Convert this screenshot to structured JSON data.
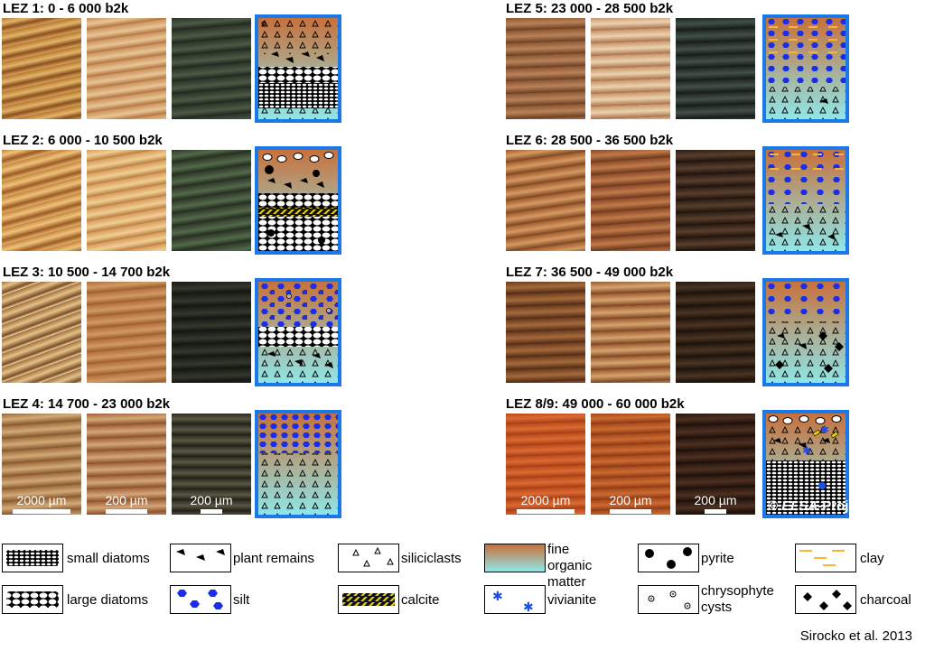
{
  "zones": [
    {
      "title": "LEZ 1:  0 - 6 000 b2k"
    },
    {
      "title": "LEZ 2:  6 000 - 10 500 b2k"
    },
    {
      "title": "LEZ 3:  10 500 - 14 700 b2k"
    },
    {
      "title": "LEZ 4:  14 700 - 23 000 b2k"
    },
    {
      "title": "LEZ 5:  23 000 - 28 500 b2k"
    },
    {
      "title": "LEZ 6:  28 500 - 36 500 b2k"
    },
    {
      "title": "LEZ 7:  36 500 - 49 000 b2k"
    },
    {
      "title": "LEZ 8/9:  49 000 - 60 000 b2k"
    }
  ],
  "scale_bars": {
    "large": "2000 µm",
    "small": "200 µm"
  },
  "watermark": {
    "symbol": "©",
    "project": "ELSA",
    "suffix": "-Project"
  },
  "legend": [
    {
      "label": "small diatoms",
      "icon": "small-diatoms"
    },
    {
      "label": "plant remains",
      "icon": "plant-remains"
    },
    {
      "label": "siliciclasts",
      "icon": "siliciclasts"
    },
    {
      "label": "fine organic matter",
      "icon": "fine-organic-matter"
    },
    {
      "label": "pyrite",
      "icon": "pyrite"
    },
    {
      "label": "clay",
      "icon": "clay"
    },
    {
      "label": "large diatoms",
      "icon": "large-diatoms"
    },
    {
      "label": "silt",
      "icon": "silt"
    },
    {
      "label": "calcite",
      "icon": "calcite"
    },
    {
      "label": "vivianite",
      "icon": "vivianite"
    },
    {
      "label": "chrysophyte cysts",
      "icon": "chrysophyte-cysts"
    },
    {
      "label": "charcoal",
      "icon": "charcoal"
    }
  ],
  "colors": {
    "frame": "#1b78e6",
    "organic_top": "#c8703a",
    "organic_bottom": "#8fe7e9",
    "silt": "#1a2ee8",
    "clay": "#f4b63a",
    "calcite": "#e8d10a"
  },
  "credit": "Sirocko et al. 2013"
}
